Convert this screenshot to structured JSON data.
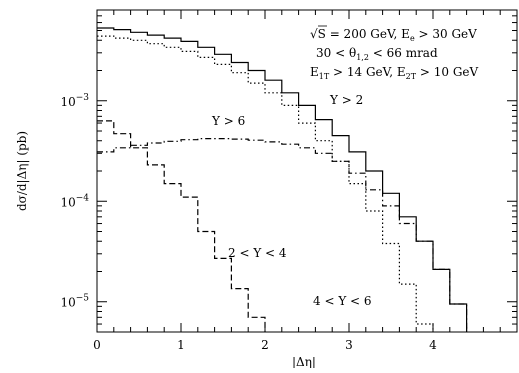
{
  "chart_data": {
    "type": "line",
    "title": "",
    "xlabel": "|Δη|",
    "ylabel": "dσ/d|Δη| (pb)",
    "xlim": [
      0,
      5
    ],
    "ylim": [
      5e-06,
      0.008
    ],
    "yscale": "log",
    "grid": false,
    "x_ticks": [
      0,
      1,
      2,
      3,
      4
    ],
    "x_tick_labels": [
      "0",
      "1",
      "2",
      "3",
      "4"
    ],
    "y_ticks": [
      0.001,
      0.0001,
      1e-05
    ],
    "y_tick_labels": [
      {
        "base": "10",
        "exp": "−3"
      },
      {
        "base": "10",
        "exp": "−4"
      },
      {
        "base": "10",
        "exp": "−5"
      }
    ],
    "annotations": {
      "header_line1_root": "√",
      "header_line1": "S = 200 GeV, E",
      "header_line1_sub": "e",
      "header_line1_rest": " > 30 GeV",
      "header_line2_a": "30 < θ",
      "header_line2_sub": "1,2",
      "header_line2_b": " < 66 mrad",
      "header_line3_a": "E",
      "header_line3_sub1": "1T",
      "header_line3_b": " > 14 GeV, E",
      "header_line3_sub2": "2T",
      "header_line3_c": " > 10 GeV",
      "label_total": "Y > 2",
      "label_y6": "Y > 6",
      "label_y24": "2 < Y < 4",
      "label_y46": "4 < Y < 6"
    },
    "bin_edges": [
      0,
      0.2,
      0.4,
      0.6,
      0.8,
      1.0,
      1.2,
      1.4,
      1.6,
      1.8,
      2.0,
      2.2,
      2.4,
      2.6,
      2.8,
      3.0,
      3.2,
      3.4,
      3.6,
      3.8,
      4.0,
      4.2,
      4.4
    ],
    "series": [
      {
        "name": "Y > 2",
        "style": "solid",
        "values": [
          0.0053,
          0.0051,
          0.0048,
          0.0045,
          0.0042,
          0.0039,
          0.0034,
          0.0029,
          0.0024,
          0.002,
          0.0016,
          0.0012,
          0.0009,
          0.00065,
          0.00045,
          0.00031,
          0.0002,
          0.00012,
          7e-05,
          4e-05,
          2.1e-05,
          9.5e-06
        ]
      },
      {
        "name": "2 < Y < 4",
        "style": "dashed",
        "values": [
          0.00063,
          0.00047,
          0.00034,
          0.00023,
          0.00015,
          0.00011,
          5e-05,
          2.7e-05,
          1.35e-05,
          7e-06,
          null,
          null,
          null,
          null,
          null,
          null,
          null,
          null,
          null,
          null,
          null,
          null
        ]
      },
      {
        "name": "4 < Y < 6",
        "style": "dotted",
        "values": [
          0.0044,
          0.0042,
          0.004,
          0.0037,
          0.0034,
          0.0031,
          0.0027,
          0.0023,
          0.0019,
          0.0015,
          0.0012,
          0.0009,
          0.0006,
          0.0004,
          0.00025,
          0.00015,
          8e-05,
          3.8e-05,
          1.5e-05,
          6e-06,
          null,
          null
        ]
      },
      {
        "name": "Y > 6",
        "style": "dashdot",
        "values": [
          0.00031,
          0.00034,
          0.00036,
          0.00038,
          0.000395,
          0.00041,
          0.00042,
          0.00042,
          0.000415,
          0.000405,
          0.00039,
          0.00037,
          0.00034,
          0.0003,
          0.00025,
          0.00019,
          0.00013,
          9e-05,
          6e-05,
          4e-05,
          2.1e-05,
          9.5e-06
        ]
      }
    ]
  }
}
